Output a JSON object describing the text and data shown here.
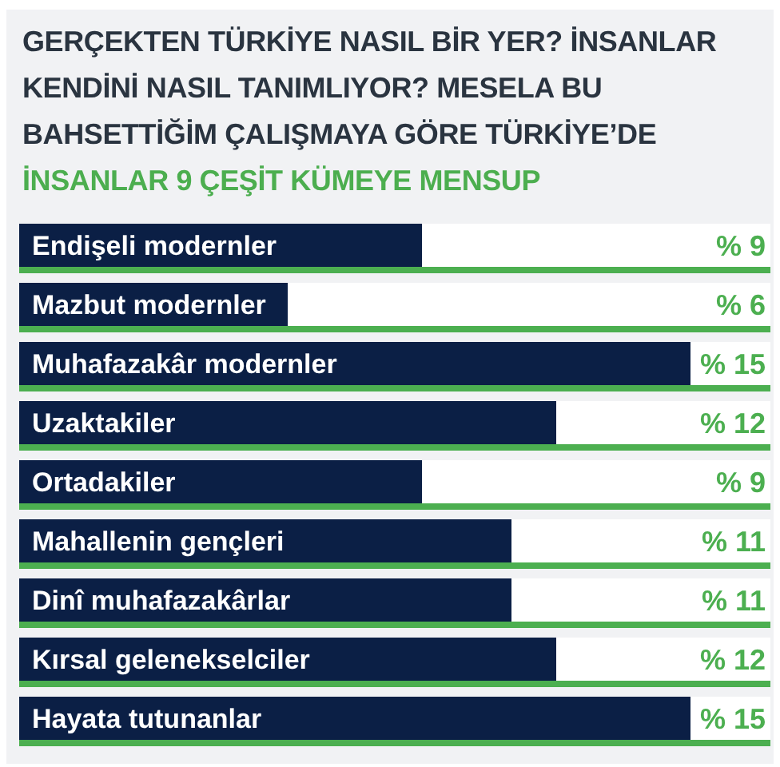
{
  "chart_data": {
    "type": "bar",
    "orientation": "horizontal",
    "title": "GERÇEKTEN TÜRKİYE NASIL BİR YER? İNSANLAR KENDİNİ NASIL TANIMLIYOR? MESELA BU BAHSETTİĞİM ÇALIŞMAYA GÖRE TÜRKİYE’DE",
    "subtitle": "İNSANLAR 9 ÇEŞİT KÜMEYE MENSUP",
    "categories": [
      "Endişeli modernler",
      "Mazbut modernler",
      "Muhafazakâr modernler",
      "Uzaktakiler",
      "Ortadakiler",
      "Mahallenin gençleri",
      "Dinî muhafazakârlar",
      "Kırsal gelenekselciler",
      "Hayata tutunanlar"
    ],
    "values": [
      9,
      6,
      15,
      12,
      9,
      11,
      11,
      12,
      15
    ],
    "color": "#0b1f45",
    "value_labels": [
      "% 9",
      "% 6",
      "% 15",
      "% 12",
      "% 9",
      "% 11",
      "% 11",
      "% 12",
      "% 15"
    ]
  }
}
